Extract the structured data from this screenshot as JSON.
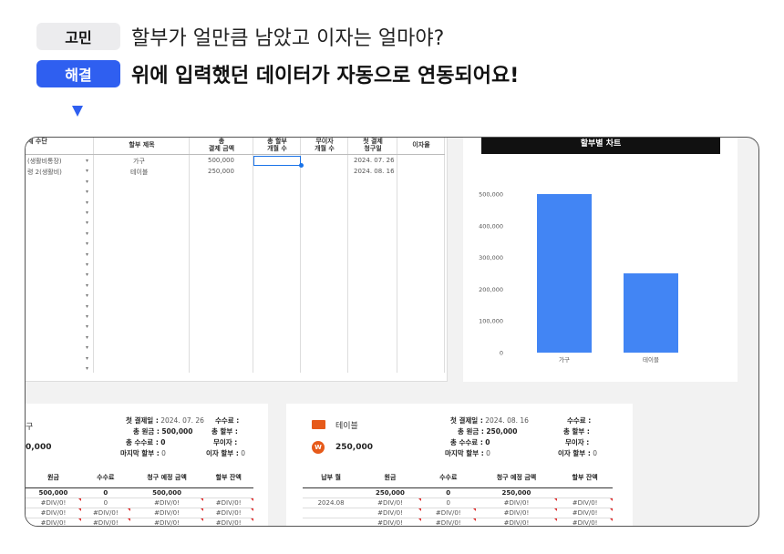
{
  "question": {
    "tag": "고민",
    "text": "할부가 얼만큼 남았고 이자는 얼마야?"
  },
  "answer": {
    "tag": "해결",
    "text": "위에 입력했던 데이터가 자동으로 연동되어요!"
  },
  "sheet": {
    "headers": [
      "제 수단",
      "할부 제목",
      "총\n결제 금액",
      "총 할부\n개월 수",
      "무이자\n개월 수",
      "첫 결제\n청구일",
      "이자율"
    ],
    "rows": [
      {
        "method": "(생활비통장)",
        "title": "가구",
        "amount": "500,000",
        "date": "2024. 07. 26"
      },
      {
        "method": "령 2(생활비)",
        "title": "테이블",
        "amount": "250,000",
        "date": "2024. 08. 16"
      }
    ]
  },
  "chart_data": {
    "type": "bar",
    "title": "할부별 차트",
    "categories": [
      "가구",
      "테이블"
    ],
    "values": [
      500000,
      250000
    ],
    "ylim": [
      0,
      500000
    ],
    "yticks": [
      "500,000",
      "400,000",
      "300,000",
      "200,000",
      "100,000",
      "0"
    ],
    "bar_color": "#4285f4",
    "grid": false
  },
  "card1": {
    "name": "구",
    "amount": "0,000",
    "first_payment_label": "첫 결제일 :",
    "first_payment": "2024. 07. 26",
    "total_principal_label": "총 원금 :",
    "total_principal": "500,000",
    "total_fee_label": "총 수수료 :",
    "total_fee": "0",
    "last_label": "마지막 할부 :",
    "last": "0",
    "fee_label": "수수료 :",
    "months_label": "총 할부 :",
    "free_label": "무이자 :",
    "interest_label": "이자 할부 :",
    "interest": "0",
    "table": {
      "headers": [
        "원금",
        "수수료",
        "청구 예정 금액",
        "할부 잔액"
      ],
      "rows": [
        [
          "500,000",
          "0",
          "500,000",
          ""
        ],
        [
          "#DIV/0!",
          "0",
          "#DIV/0!",
          "#DIV/0!"
        ],
        [
          "#DIV/0!",
          "#DIV/0!",
          "#DIV/0!",
          "#DIV/0!"
        ],
        [
          "#DIV/0!",
          "#DIV/0!",
          "#DIV/0!",
          "#DIV/0!"
        ]
      ]
    }
  },
  "card2": {
    "name": "테이블",
    "amount": "250,000",
    "first_payment_label": "첫 결제일 :",
    "first_payment": "2024. 08. 16",
    "total_principal_label": "총 원금 :",
    "total_principal": "250,000",
    "total_fee_label": "총 수수료 :",
    "total_fee": "0",
    "last_label": "마지막 할부 :",
    "last": "0",
    "fee_label": "수수료 :",
    "months_label": "총 할부 :",
    "free_label": "무이자 :",
    "interest_label": "이자 할부 :",
    "interest": "0",
    "table": {
      "headers": [
        "납부 월",
        "원금",
        "수수료",
        "청구 예정 금액",
        "할부 잔액"
      ],
      "rows": [
        [
          "",
          "250,000",
          "0",
          "250,000",
          ""
        ],
        [
          "2024.08",
          "#DIV/0!",
          "0",
          "#DIV/0!",
          "#DIV/0!"
        ],
        [
          "",
          "#DIV/0!",
          "#DIV/0!",
          "#DIV/0!",
          "#DIV/0!"
        ],
        [
          "",
          "#DIV/0!",
          "#DIV/0!",
          "#DIV/0!",
          "#DIV/0!"
        ]
      ]
    }
  }
}
